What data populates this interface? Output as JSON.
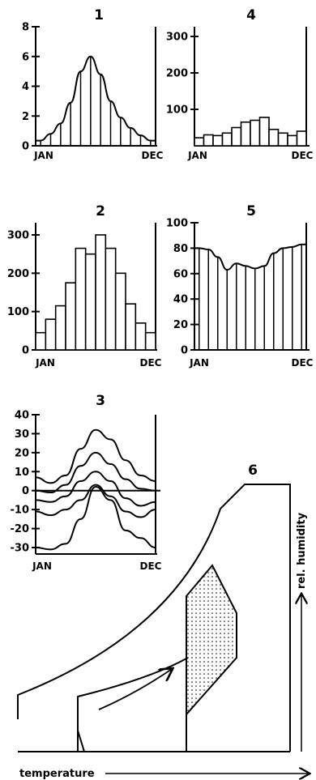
{
  "chart_data": [
    {
      "id": "1",
      "type": "area",
      "title": "1",
      "x_start_label": "JAN",
      "x_end_label": "DEC",
      "ylim": [
        0,
        8
      ],
      "yticks": [
        0,
        2,
        4,
        6,
        8
      ],
      "values": [
        0.35,
        0.8,
        1.5,
        2.9,
        5.0,
        6.0,
        4.8,
        3.0,
        1.9,
        1.2,
        0.7,
        0.35
      ]
    },
    {
      "id": "2",
      "type": "bar",
      "title": "2",
      "x_start_label": "JAN",
      "x_end_label": "DEC",
      "ylim": [
        0,
        300
      ],
      "yticks": [
        0,
        100,
        200,
        300
      ],
      "values": [
        45,
        80,
        115,
        175,
        265,
        250,
        300,
        265,
        200,
        120,
        70,
        45
      ]
    },
    {
      "id": "3",
      "type": "line",
      "title": "3",
      "x_start_label": "JAN",
      "x_end_label": "DEC",
      "ylim": [
        -30,
        40
      ],
      "yticks": [
        -30,
        -20,
        -10,
        0,
        10,
        20,
        30,
        40
      ],
      "series": [
        {
          "values": [
            7,
            4,
            8,
            22,
            32,
            27,
            16,
            8,
            5
          ]
        },
        {
          "values": [
            0,
            -1,
            3,
            13,
            20,
            14,
            6,
            1,
            0
          ]
        },
        {
          "values": [
            -5,
            -6,
            -3,
            5,
            10,
            5,
            -4,
            -8,
            -6
          ]
        },
        {
          "values": [
            -11,
            -13,
            -10,
            -5,
            3,
            -3,
            -11,
            -14,
            -10
          ]
        },
        {
          "values": [
            -30,
            -31,
            -28,
            -15,
            2,
            -5,
            -21,
            -25,
            -30
          ]
        }
      ]
    },
    {
      "id": "4",
      "type": "bar",
      "title": "4",
      "x_start_label": "JAN",
      "x_end_label": "DEC",
      "ylim": [
        0,
        300
      ],
      "yticks": [
        100,
        200,
        300
      ],
      "values": [
        22,
        30,
        28,
        35,
        50,
        65,
        70,
        78,
        45,
        35,
        28,
        40
      ]
    },
    {
      "id": "5",
      "type": "area",
      "title": "5",
      "x_start_label": "JAN",
      "x_end_label": "DEC",
      "ylim": [
        0,
        100
      ],
      "yticks": [
        0,
        20,
        40,
        60,
        80,
        100
      ],
      "values": [
        80,
        79,
        73,
        63,
        68,
        66,
        64,
        66,
        76,
        80,
        81,
        83
      ]
    },
    {
      "id": "6",
      "type": "diagram",
      "title": "6",
      "xlabel": "temperature",
      "ylabel": "rel. humidity"
    }
  ]
}
